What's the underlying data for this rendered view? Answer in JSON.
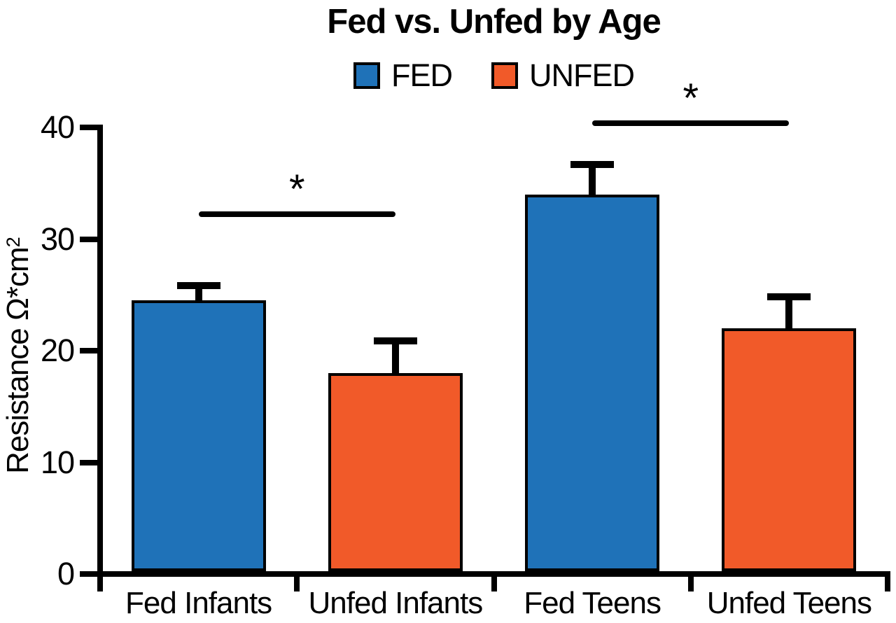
{
  "chart_data": {
    "type": "bar",
    "title": "Fed vs. Unfed by Age",
    "ylabel_base": "Resistance Ω*cm",
    "ylabel_superscript": "2",
    "xlabel": "",
    "categories": [
      "Fed Infants",
      "Unfed Infants",
      "Fed Teens",
      "Unfed Teens"
    ],
    "values": [
      24.5,
      18,
      34,
      22
    ],
    "errors_plus": [
      1.3,
      2.9,
      2.7,
      2.8
    ],
    "bar_colors": [
      "#1F72B8",
      "#F15A29",
      "#1F72B8",
      "#F15A29"
    ],
    "legend": [
      {
        "label": "FED",
        "color": "#1F72B8"
      },
      {
        "label": "UNFED",
        "color": "#F15A29"
      }
    ],
    "legend_position": "top",
    "grid": "off",
    "ylim": [
      0,
      40
    ],
    "yticks": [
      0,
      10,
      20,
      30,
      40
    ],
    "significance": [
      {
        "from": 0,
        "to": 1,
        "from_category": "Fed Infants",
        "to_category": "Unfed Infants",
        "y": 32.2,
        "label": "*"
      },
      {
        "from": 2,
        "to": 3,
        "from_category": "Fed Teens",
        "to_category": "Unfed Teens",
        "y": 40.4,
        "label": "*"
      }
    ],
    "axis_color": "#000000"
  }
}
